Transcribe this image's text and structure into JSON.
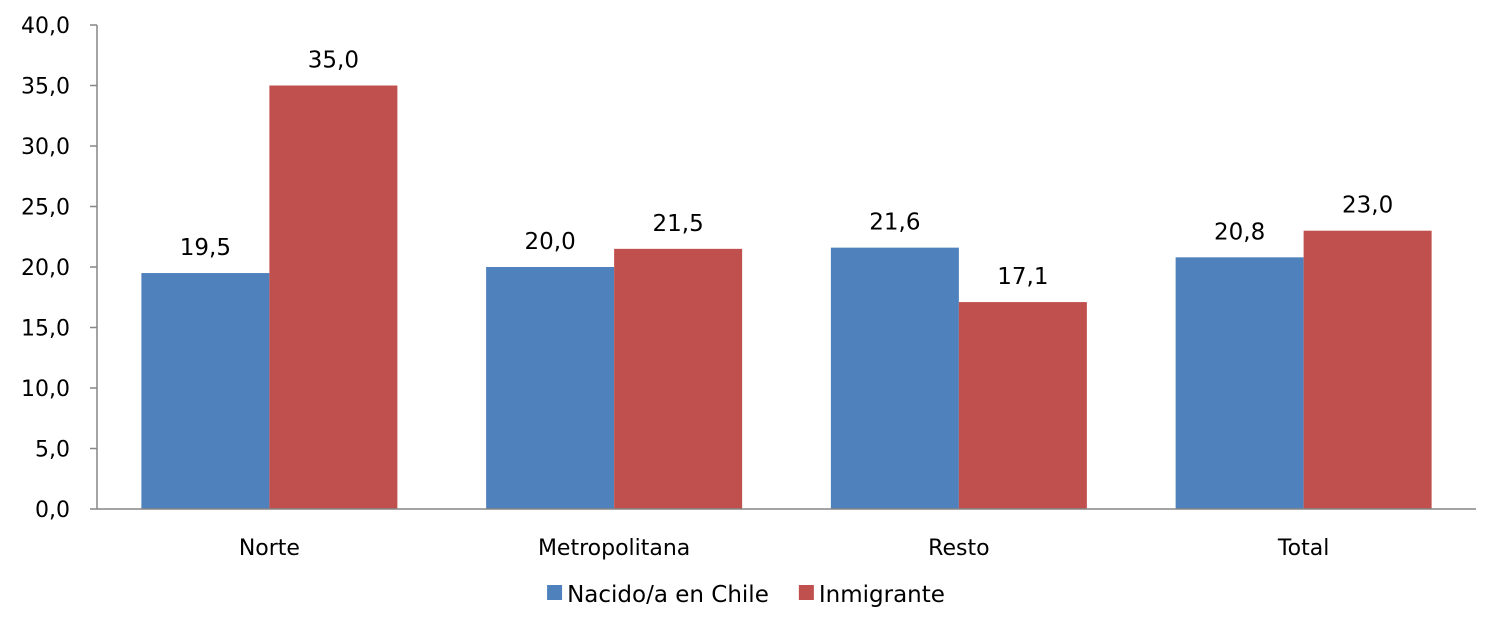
{
  "chart_data": {
    "type": "bar",
    "categories": [
      "Norte",
      "Metropolitana",
      "Resto",
      "Total"
    ],
    "series": [
      {
        "name": "Nacido/a en Chile",
        "color": "#4f81bd",
        "values": [
          19.5,
          20.0,
          21.6,
          20.8
        ],
        "labels": [
          "19,5",
          "20,0",
          "21,6",
          "20,8"
        ]
      },
      {
        "name": "Inmigrante",
        "color": "#c0504d",
        "values": [
          35.0,
          21.5,
          17.1,
          23.0
        ],
        "labels": [
          "35,0",
          "21,5",
          "17,1",
          "23,0"
        ]
      }
    ],
    "y_ticks": [
      "0,0",
      "5,0",
      "10,0",
      "15,0",
      "20,0",
      "25,0",
      "30,0",
      "35,0",
      "40,0"
    ],
    "ylim": [
      0,
      40
    ],
    "y_step": 5,
    "grid": false,
    "legend_position": "bottom",
    "axis_color": "#868686"
  }
}
